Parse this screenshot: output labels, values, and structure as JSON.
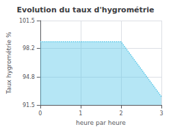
{
  "chart_data": {
    "type": "area",
    "title": "Evolution du taux d'hygrométrie",
    "xlabel": "heure par heure",
    "ylabel": "Taux hygrométrie %",
    "x": [
      0,
      1,
      2,
      3
    ],
    "values": [
      99.0,
      99.0,
      99.0,
      92.5
    ],
    "xlim": [
      0,
      3
    ],
    "xticks": [
      0,
      1,
      2,
      3
    ],
    "ylim": [
      91.5,
      101.5
    ],
    "yticks": [
      91.5,
      94.8,
      98.2,
      101.5
    ],
    "color": "#5bc8e8",
    "line_style": "dotted",
    "grid": true
  }
}
